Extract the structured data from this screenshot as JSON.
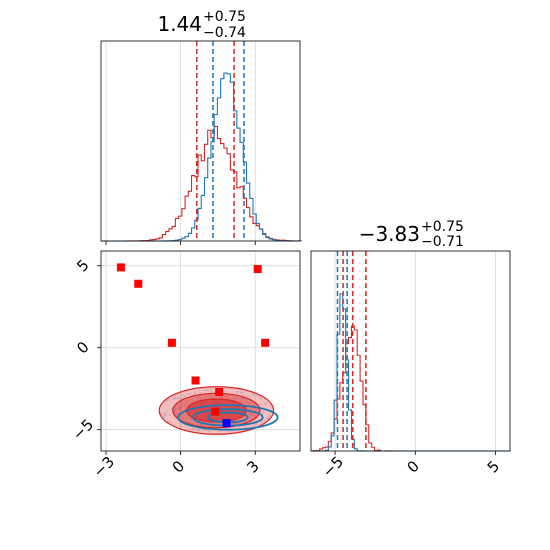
{
  "chart_data": {
    "type": "corner",
    "parameters": [
      {
        "title_value": "1.44",
        "title_plus": "+0.75",
        "title_minus": "−0.74"
      },
      {
        "title_value": "−3.83",
        "title_plus": "+0.75",
        "title_minus": "−0.71"
      }
    ],
    "colors": {
      "series_a": "#1f77b4",
      "series_b": "#d62728",
      "marker_red": "#ff0000",
      "marker_blue": "#0000ff",
      "grid": "#d8d8d8"
    },
    "panel_top_left": {
      "type": "histogram",
      "xlim": [
        -3.2,
        4.8
      ],
      "grid": true,
      "quantiles_series_b": [
        0.65,
        2.15
      ],
      "quantiles_series_a": [
        1.3,
        2.55
      ],
      "tick_positions": [
        -3,
        0,
        3
      ],
      "tick_labels": [
        "",
        "",
        ""
      ]
    },
    "panel_bottom_left": {
      "type": "scatter+contour",
      "xlim": [
        -3.2,
        4.8
      ],
      "ylim": [
        -6.3,
        5.9
      ],
      "grid": true,
      "x_tick_positions": [
        -3,
        0,
        3
      ],
      "x_tick_labels": [
        "−3",
        "0",
        "3"
      ],
      "y_tick_positions": [
        5,
        0,
        -5
      ],
      "y_tick_labels": [
        "5",
        "0",
        "−5"
      ],
      "red_points": [
        {
          "x": -2.4,
          "y": 4.9
        },
        {
          "x": -1.7,
          "y": 3.9
        },
        {
          "x": -0.35,
          "y": 0.3
        },
        {
          "x": 3.1,
          "y": 4.8
        },
        {
          "x": 3.4,
          "y": 0.3
        },
        {
          "x": 0.6,
          "y": -2.0
        },
        {
          "x": 1.55,
          "y": -2.7
        },
        {
          "x": 1.4,
          "y": -3.9
        }
      ],
      "blue_points": [
        {
          "x": 1.85,
          "y": -4.6
        }
      ],
      "contour_center": [
        1.44,
        -3.83
      ]
    },
    "panel_bottom_right": {
      "type": "histogram",
      "xlim": [
        -6.5,
        5.9
      ],
      "grid": true,
      "quantiles_series_a": [
        -4.85,
        -4.25
      ],
      "quantiles_series_b": [
        -4.5,
        -3.9,
        -3.08
      ],
      "x_tick_positions": [
        -5,
        0,
        5
      ],
      "x_tick_labels": [
        "−5",
        "0",
        "5"
      ]
    }
  }
}
